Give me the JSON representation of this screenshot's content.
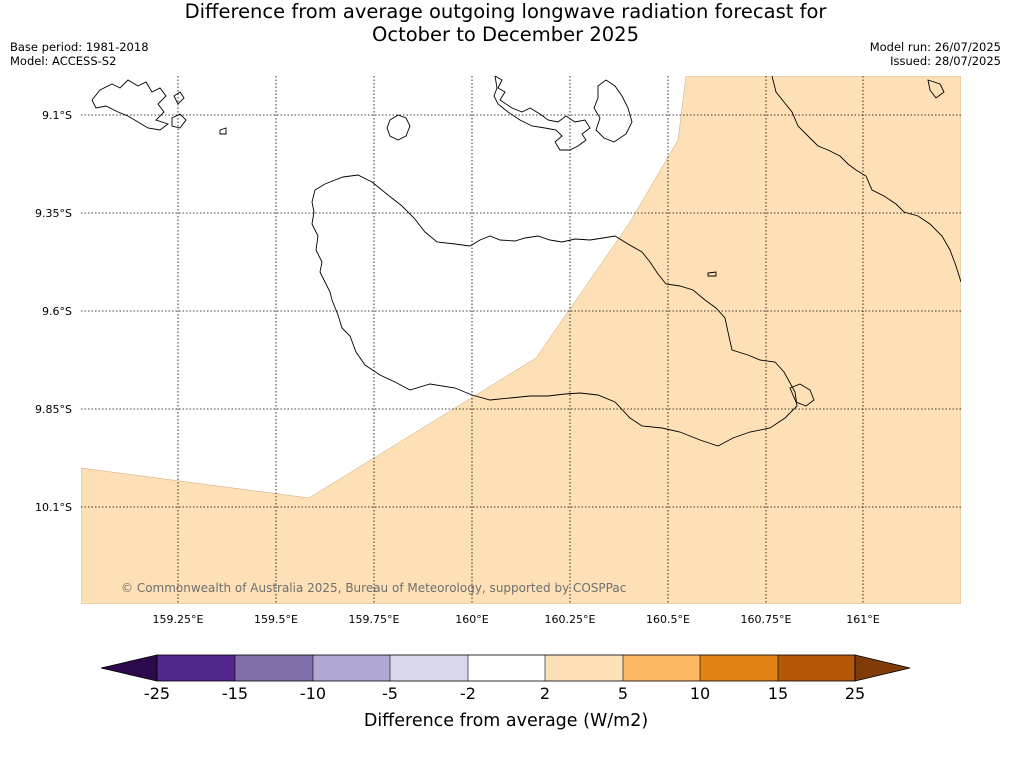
{
  "header": {
    "title_line1": "Difference from average outgoing longwave radiation forecast for",
    "title_line2": "October to December 2025",
    "base_period": "Base period: 1981-2018",
    "model": "Model: ACCESS-S2",
    "model_run": "Model run: 26/07/2025",
    "issued": "Issued: 28/07/2025"
  },
  "map": {
    "lat_labels": [
      "9.1°S",
      "9.35°S",
      "9.6°S",
      "9.85°S",
      "10.1°S"
    ],
    "lon_labels": [
      "159.25°E",
      "159.5°E",
      "159.75°E",
      "160°E",
      "160.25°E",
      "160.5°E",
      "160.75°E",
      "161°E"
    ],
    "copyright": "© Commonwealth of Australia 2025, Bureau of Meteorology, supported by COSPPac",
    "shaded_category": "2 to 5",
    "colors": {
      "shaded": "#fde0b6",
      "unshaded": "#ffffff",
      "gridlines": "#000000"
    }
  },
  "colorbar": {
    "title": "Difference from average (W/m2)",
    "ticks": [
      "-25",
      "-15",
      "-10",
      "-5",
      "-2",
      "2",
      "5",
      "10",
      "15",
      "25"
    ],
    "colors": {
      "below_min": "#2d0a4e",
      "bins": [
        "#54278f",
        "#7f70ab",
        "#b0a8d3",
        "#d9d8ea",
        "#ffffff",
        "#fde0b6",
        "#fdb863",
        "#e08214",
        "#b35806"
      ],
      "above_max": "#7f3b08"
    }
  }
}
